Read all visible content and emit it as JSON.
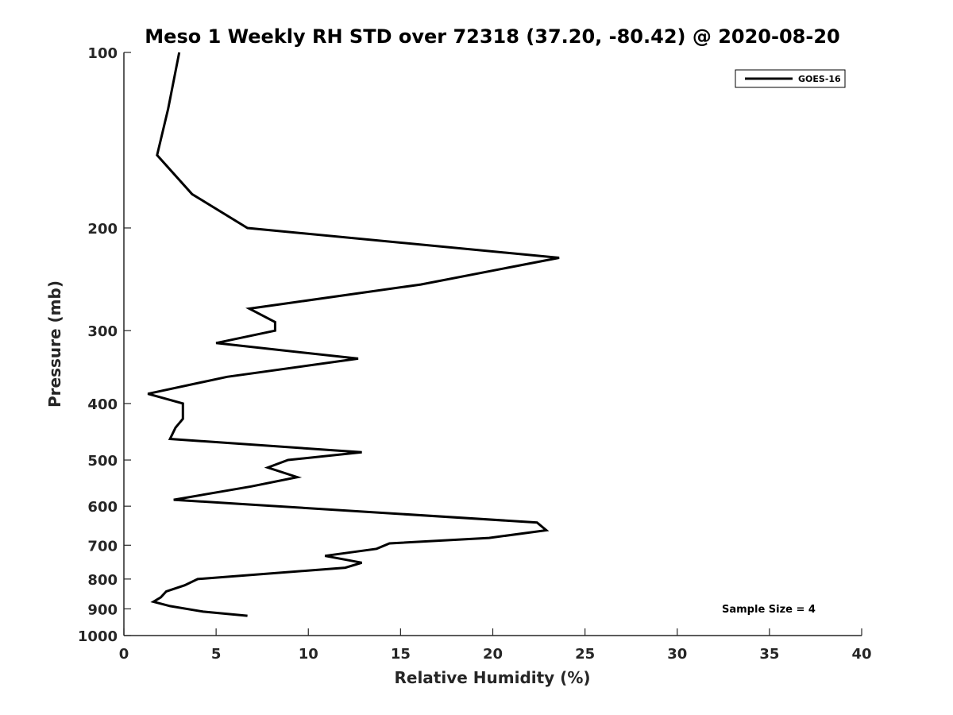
{
  "chart_data": {
    "type": "line",
    "title": "Meso 1 Weekly RH STD over 72318 (37.20, -80.42) @ 2020-08-20",
    "xlabel": "Relative Humidity (%)",
    "ylabel": "Pressure (mb)",
    "xlim": [
      0,
      40
    ],
    "ylim": [
      100,
      1000
    ],
    "y_scale": "log",
    "y_reversed": true,
    "x_ticks": [
      "0",
      "5",
      "10",
      "15",
      "20",
      "25",
      "30",
      "35",
      "40"
    ],
    "y_ticks": [
      "100",
      "200",
      "300",
      "400",
      "500",
      "600",
      "700",
      "800",
      "900",
      "1000"
    ],
    "grid": false,
    "legend_position": "top-right",
    "annotation": "Sample Size = 4",
    "series": [
      {
        "name": "GOES-16",
        "color": "#000000",
        "points": [
          [
            3.0,
            100
          ],
          [
            2.4,
            125
          ],
          [
            1.8,
            150
          ],
          [
            3.7,
            175
          ],
          [
            6.7,
            200
          ],
          [
            23.6,
            225
          ],
          [
            16.1,
            250
          ],
          [
            6.8,
            275
          ],
          [
            8.2,
            290
          ],
          [
            8.2,
            300
          ],
          [
            5.0,
            315
          ],
          [
            12.7,
            335
          ],
          [
            5.6,
            360
          ],
          [
            1.3,
            385
          ],
          [
            3.2,
            400
          ],
          [
            3.2,
            425
          ],
          [
            2.8,
            440
          ],
          [
            2.5,
            460
          ],
          [
            12.9,
            485
          ],
          [
            8.9,
            500
          ],
          [
            7.8,
            515
          ],
          [
            9.4,
            535
          ],
          [
            6.9,
            555
          ],
          [
            2.7,
            585
          ],
          [
            22.4,
            640
          ],
          [
            22.9,
            660
          ],
          [
            19.8,
            680
          ],
          [
            14.4,
            695
          ],
          [
            13.7,
            710
          ],
          [
            10.9,
            730
          ],
          [
            12.9,
            750
          ],
          [
            12.0,
            765
          ],
          [
            4.0,
            800
          ],
          [
            3.3,
            820
          ],
          [
            2.3,
            840
          ],
          [
            2.0,
            860
          ],
          [
            1.6,
            875
          ],
          [
            2.5,
            890
          ],
          [
            4.3,
            910
          ],
          [
            6.7,
            925
          ]
        ]
      }
    ]
  }
}
